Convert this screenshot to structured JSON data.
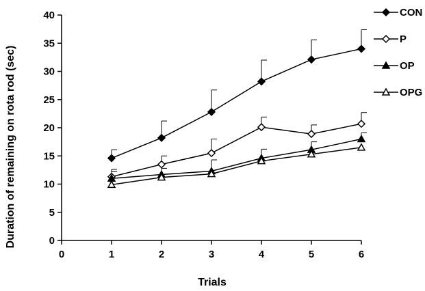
{
  "chart_data": {
    "type": "line",
    "title": "",
    "xlabel": "Trials",
    "ylabel": "Duration of remaining on rota rod (sec)",
    "xlim": [
      0,
      6
    ],
    "ylim": [
      0,
      40
    ],
    "xticks": [
      "0",
      "1",
      "2",
      "3",
      "4",
      "5",
      "6"
    ],
    "yticks": [
      "0",
      "5",
      "10",
      "15",
      "20",
      "25",
      "30",
      "35",
      "40"
    ],
    "x": [
      1,
      2,
      3,
      4,
      5,
      6
    ],
    "grid": false,
    "legend_position": "top-right",
    "series": [
      {
        "name": "CON",
        "marker": "filled-diamond",
        "values": [
          14.6,
          18.2,
          22.8,
          28.2,
          32.1,
          34.0
        ],
        "errors": [
          1.5,
          3.0,
          3.9,
          3.8,
          3.5,
          3.4
        ]
      },
      {
        "name": "P",
        "marker": "open-diamond",
        "values": [
          11.3,
          13.5,
          15.5,
          20.1,
          18.9,
          20.7
        ],
        "errors": [
          1.3,
          1.5,
          2.5,
          1.8,
          1.6,
          2.0
        ]
      },
      {
        "name": "OP",
        "marker": "filled-triangle",
        "values": [
          11.0,
          11.7,
          12.3,
          14.6,
          16.1,
          18.0
        ],
        "errors": [
          1.2,
          1.1,
          2.0,
          1.6,
          1.4,
          1.1
        ]
      },
      {
        "name": "OPG",
        "marker": "open-triangle",
        "values": [
          9.9,
          11.2,
          11.8,
          14.1,
          15.3,
          16.5
        ],
        "errors": [
          0.0,
          0.0,
          0.0,
          0.0,
          0.0,
          0.0
        ]
      }
    ]
  }
}
